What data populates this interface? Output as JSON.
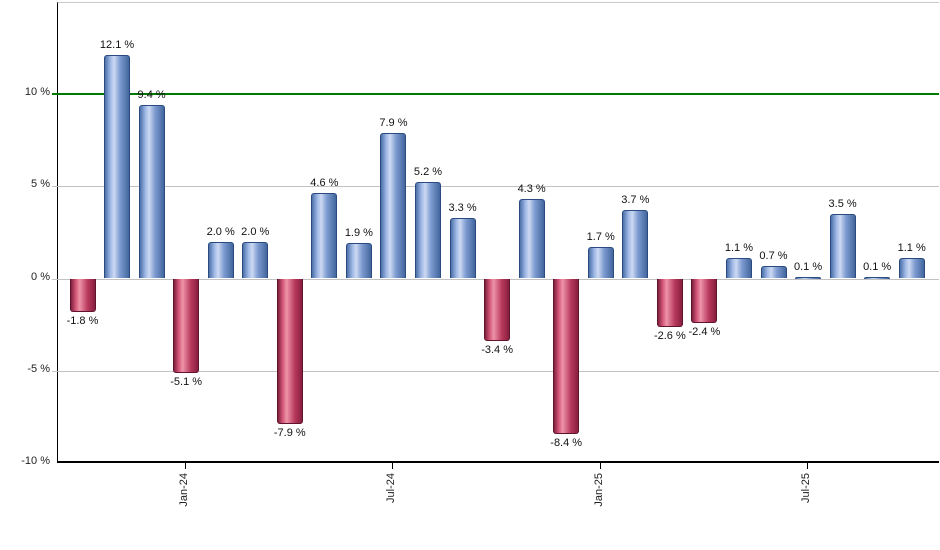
{
  "chart_data": {
    "type": "bar",
    "title": "",
    "xlabel": "",
    "ylabel": "",
    "ylim": [
      -10,
      14.9
    ],
    "grid": "on",
    "legend": "none",
    "values": [
      -1.8,
      12.1,
      9.4,
      -5.1,
      2.0,
      2.0,
      -7.9,
      4.6,
      1.9,
      7.9,
      5.2,
      3.3,
      -3.4,
      4.3,
      -8.4,
      1.7,
      3.7,
      -2.6,
      -2.4,
      1.1,
      0.7,
      0.1,
      3.5,
      0.1,
      1.1
    ],
    "bar_labels": [
      "-1.8 %",
      "12.1 %",
      "9.4 %",
      "-5.1 %",
      "2.0 %",
      "2.0 %",
      "-7.9 %",
      "4.6 %",
      "1.9 %",
      "7.9 %",
      "5.2 %",
      "3.3 %",
      "-3.4 %",
      "4.3 %",
      "-8.4 %",
      "1.7 %",
      "3.7 %",
      "-2.6 %",
      "-2.4 %",
      "1.1 %",
      "0.7 %",
      "0.1 %",
      "3.5 %",
      "0.1 %",
      "1.1 %"
    ],
    "x_tick_labels": [
      {
        "bar_index": 3,
        "label": "Jan-24"
      },
      {
        "bar_index": 9,
        "label": "Jul-24"
      },
      {
        "bar_index": 15,
        "label": "Jan-25"
      },
      {
        "bar_index": 21,
        "label": "Jul-25"
      }
    ],
    "y_tick_labels": [
      {
        "value": 10,
        "label": "10 %"
      },
      {
        "value": 5,
        "label": "5 %"
      },
      {
        "value": 0,
        "label": "0 %"
      },
      {
        "value": -5,
        "label": "-5 %"
      },
      {
        "value": -10,
        "label": "-10 %"
      }
    ],
    "gridline_values": [
      10,
      5,
      0,
      -5
    ],
    "reference_line": {
      "value": 10,
      "color": "#007a00"
    },
    "colors": {
      "positive_bar": "#8fabdb",
      "positive_bar_edge": "#2a4a80",
      "negative_bar": "#d05070",
      "negative_bar_edge": "#5f132c",
      "gridline": "#c2c2c2",
      "axis": "#000000",
      "reference_line": "#007a00",
      "background": "#ffffff",
      "label_text": "#111111"
    }
  }
}
